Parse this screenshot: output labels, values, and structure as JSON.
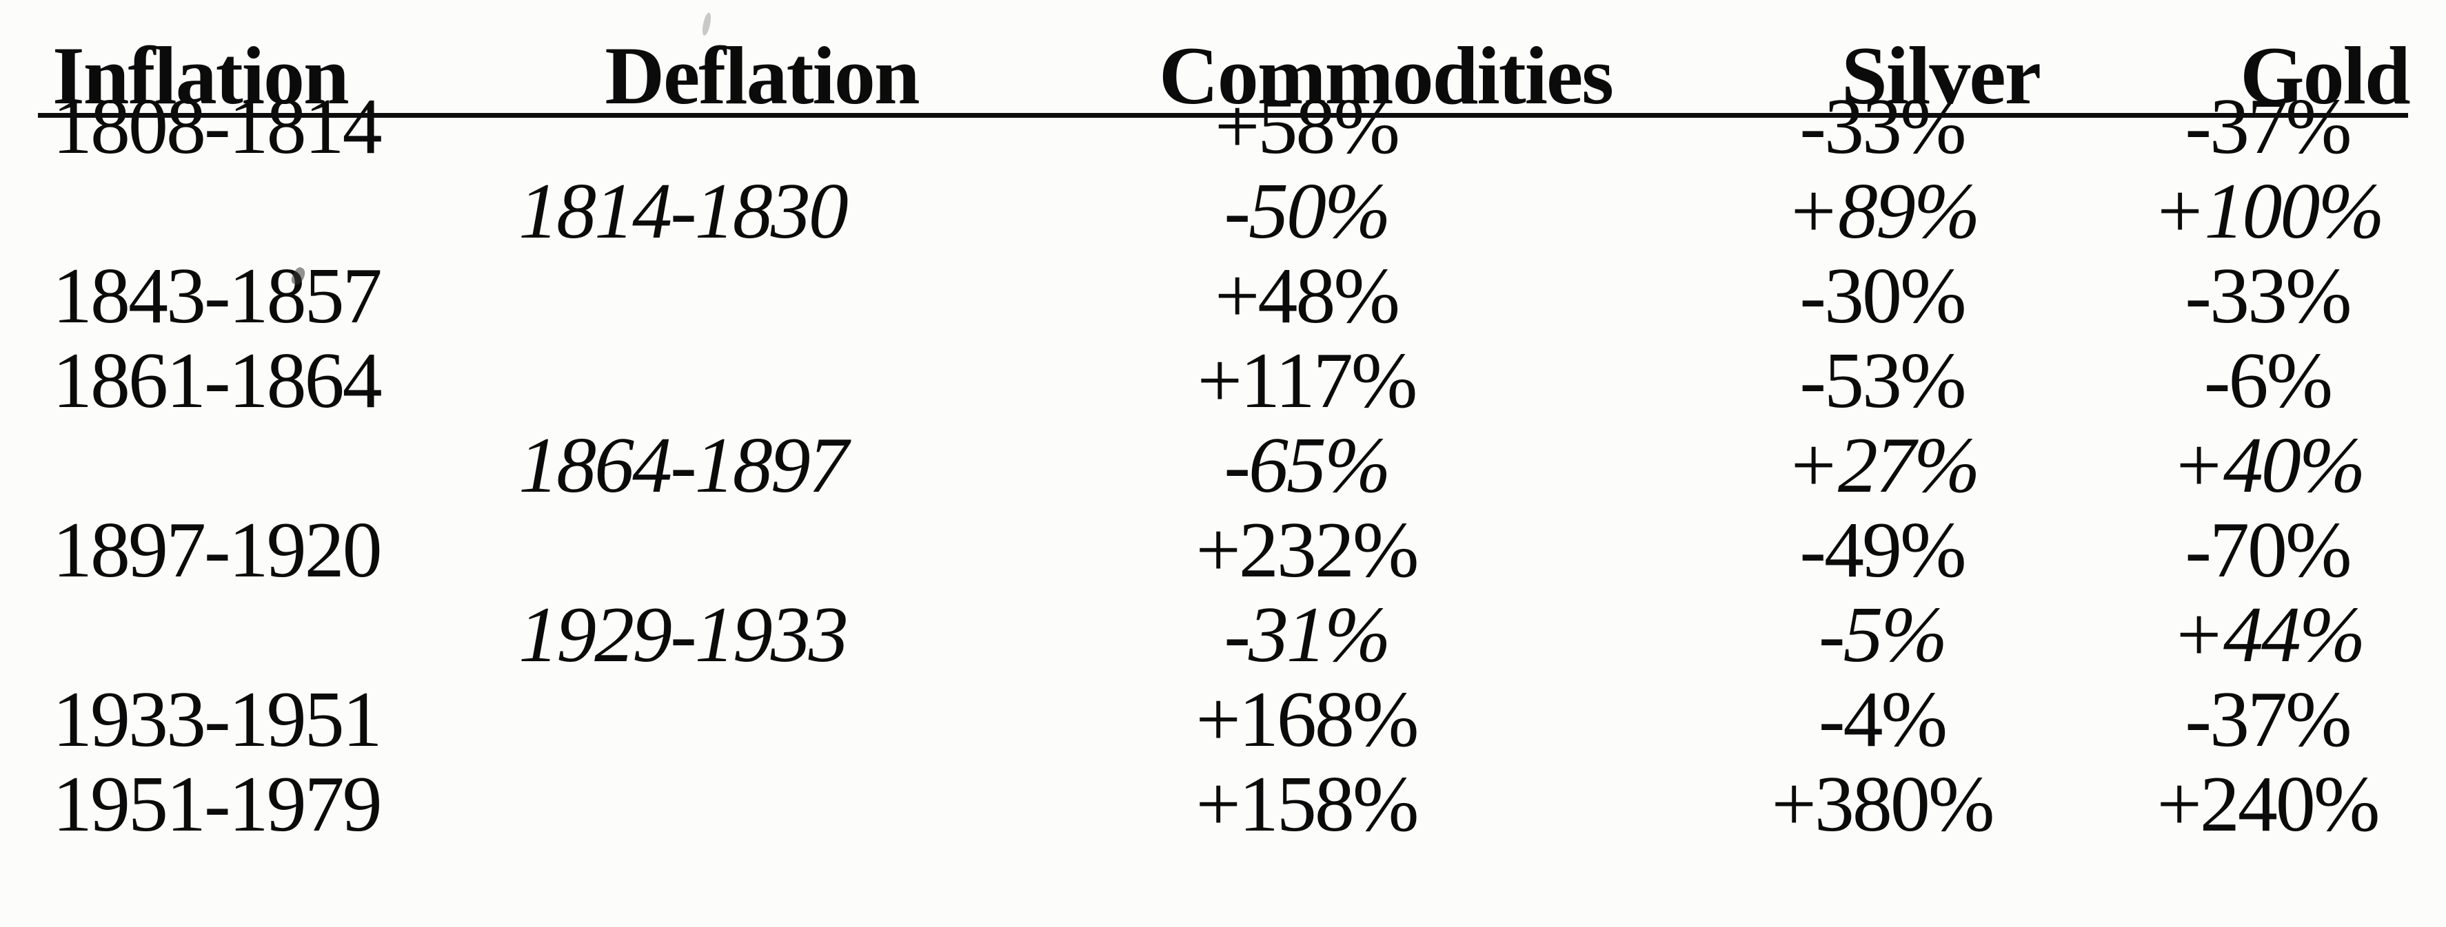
{
  "table": {
    "columns": {
      "inflation": "Inflation",
      "deflation": "Deflation",
      "commodities": "Commodities",
      "silver": "Silver",
      "gold": "Gold"
    },
    "rows": [
      {
        "inflation": "1808-1814",
        "deflation": "",
        "commodities": "+58%",
        "silver": "-33%",
        "gold": "-37%"
      },
      {
        "inflation": "",
        "deflation": "1814-1830",
        "commodities": "-50%",
        "silver": "+89%",
        "gold": "+100%"
      },
      {
        "inflation": "1843-1857",
        "deflation": "",
        "commodities": "+48%",
        "silver": "-30%",
        "gold": "-33%"
      },
      {
        "inflation": "1861-1864",
        "deflation": "",
        "commodities": "+117%",
        "silver": "-53%",
        "gold": "-6%"
      },
      {
        "inflation": "",
        "deflation": "1864-1897",
        "commodities": "-65%",
        "silver": "+27%",
        "gold": "+40%"
      },
      {
        "inflation": "1897-1920",
        "deflation": "",
        "commodities": "+232%",
        "silver": "-49%",
        "gold": "-70%"
      },
      {
        "inflation": "",
        "deflation": "1929-1933",
        "commodities": "-31%",
        "silver": "-5%",
        "gold": "+44%"
      },
      {
        "inflation": "1933-1951",
        "deflation": "",
        "commodities": "+168%",
        "silver": "-4%",
        "gold": "-37%"
      },
      {
        "inflation": "1951-1979",
        "deflation": "",
        "commodities": "+158%",
        "silver": "+380%",
        "gold": "+240%"
      }
    ]
  },
  "colors": {
    "text": "#0b0b0b",
    "background": "#fcfcfa",
    "rule": "#0d0d0d"
  }
}
